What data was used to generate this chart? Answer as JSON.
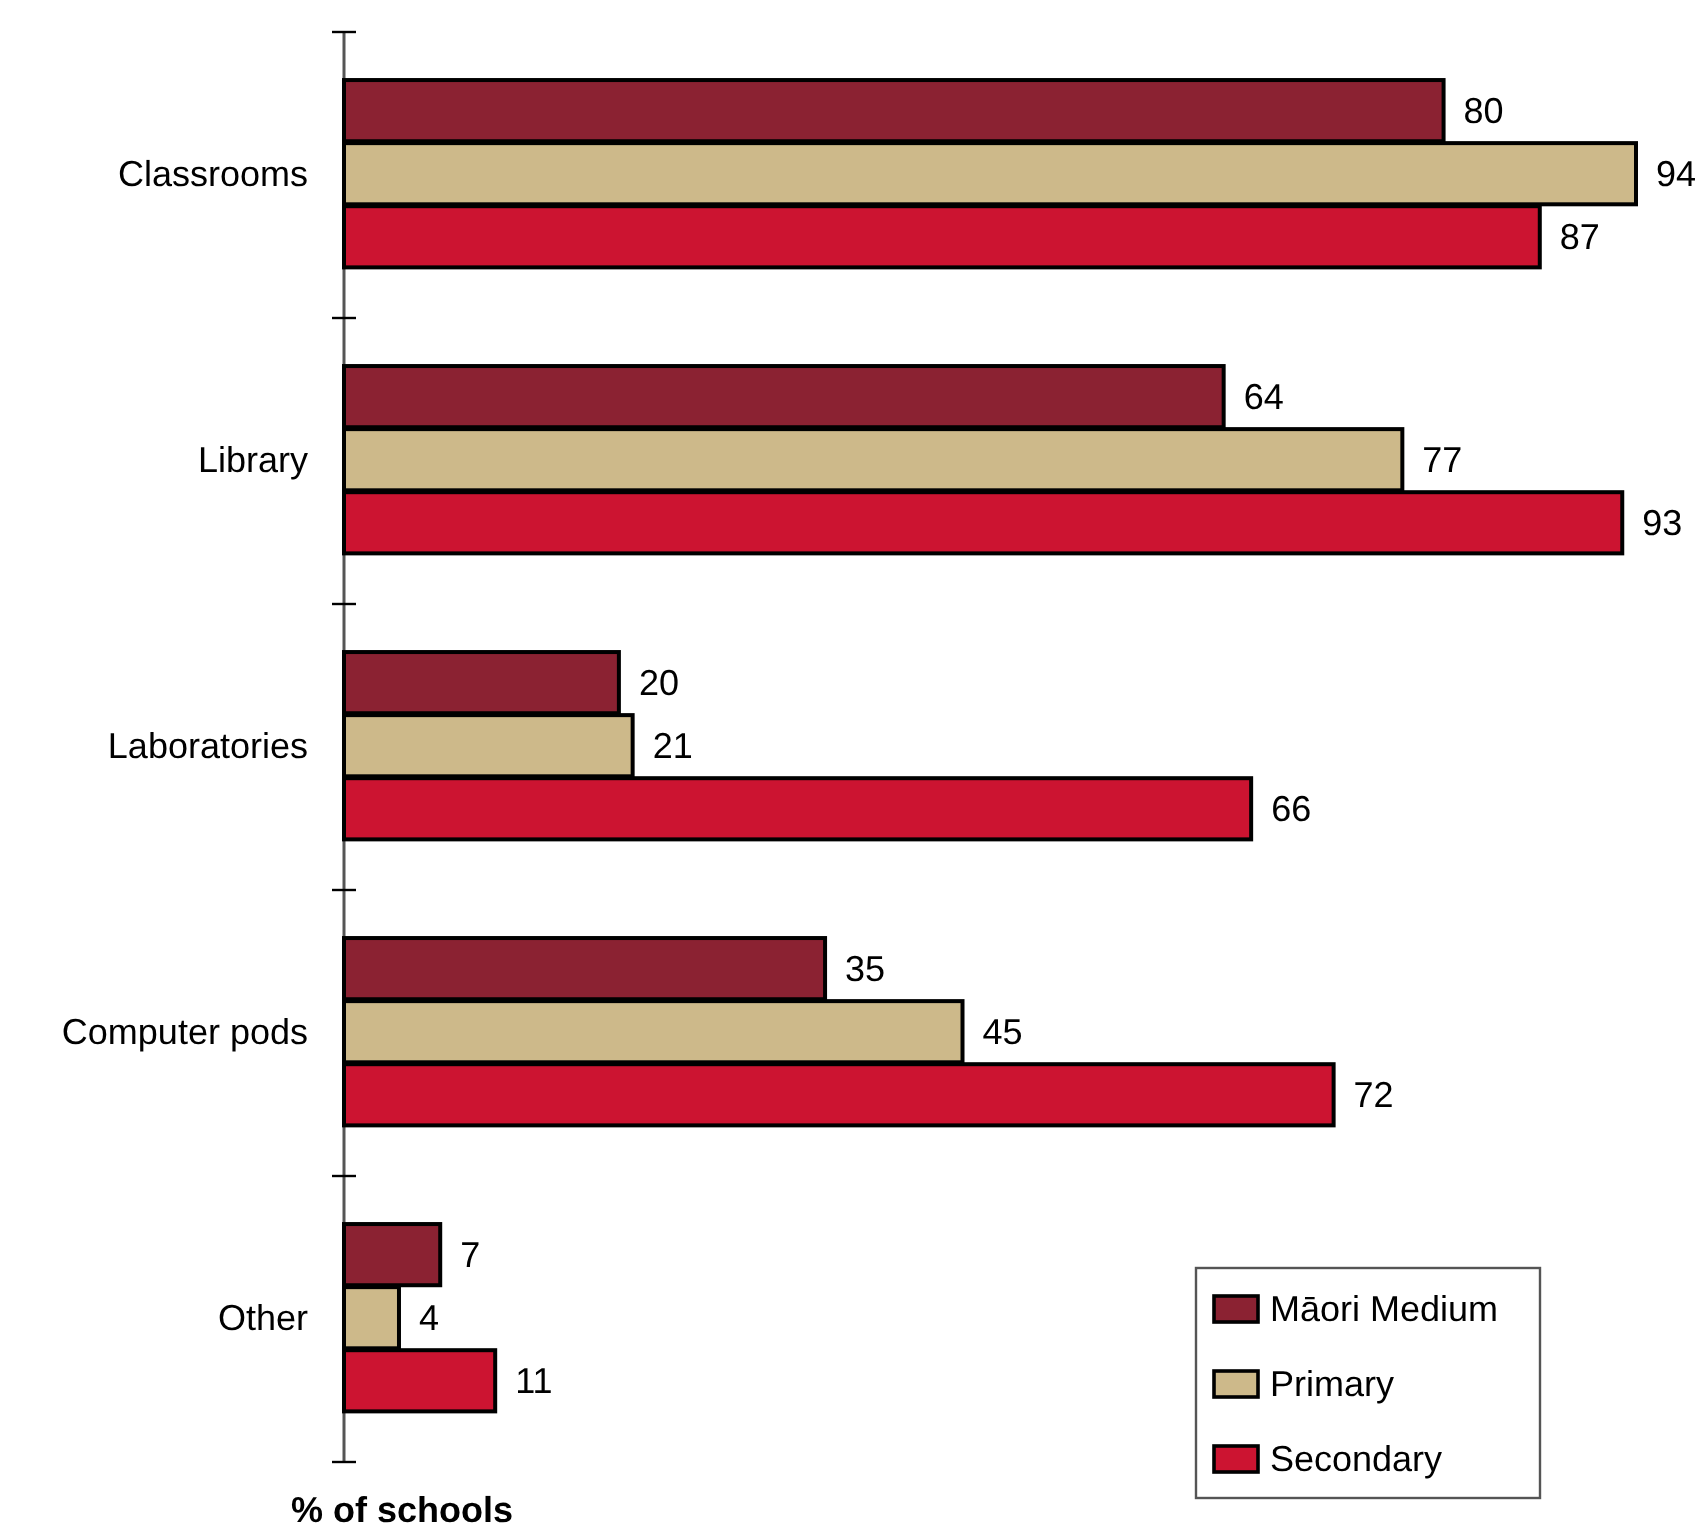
{
  "chart_data": {
    "type": "bar",
    "orientation": "horizontal",
    "xlabel": "% of schools",
    "categories": [
      "Classrooms",
      "Library",
      "Laboratories",
      "Computer pods",
      "Other"
    ],
    "series": [
      {
        "name": "Māori Medium",
        "color": "#8b2232",
        "values": [
          80,
          64,
          20,
          35,
          7
        ]
      },
      {
        "name": "Primary",
        "color": "#cdb98a",
        "values": [
          94,
          77,
          21,
          45,
          4
        ]
      },
      {
        "name": "Secondary",
        "color": "#cc1431",
        "values": [
          87,
          93,
          66,
          72,
          11
        ]
      }
    ],
    "data_labels": true,
    "legend": "bottom right",
    "tick_labels": "y"
  }
}
